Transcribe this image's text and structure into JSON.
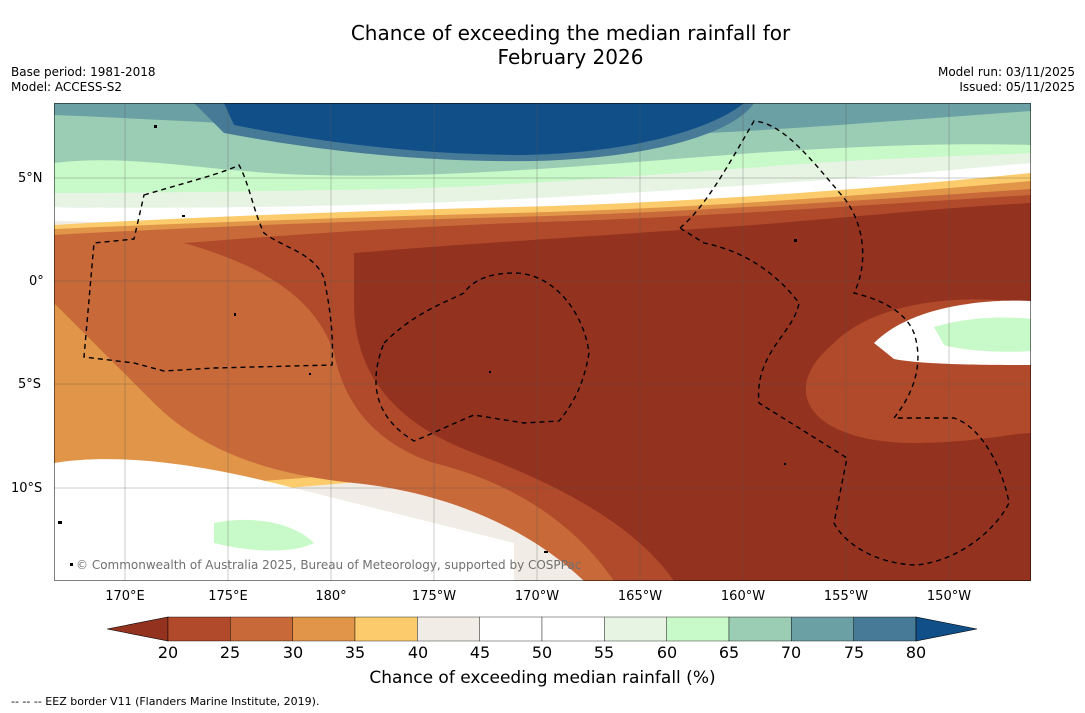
{
  "title_line1": "Chance of exceeding the median rainfall for",
  "title_line2": "February 2026",
  "base_period": "Base period: 1981-2018",
  "model": "Model: ACCESS-S2",
  "model_run": "Model run: 03/11/2025",
  "issued": "Issued: 05/11/2025",
  "lat_labels": [
    "5°N",
    "0°",
    "5°S",
    "10°S"
  ],
  "lon_labels": [
    "170°E",
    "175°E",
    "180°",
    "175°W",
    "170°W",
    "165°W",
    "160°W",
    "155°W",
    "150°W"
  ],
  "copyright": "© Commonwealth of Australia 2025, Bureau of Meteorology, supported by COSPPac",
  "colorbar": {
    "ticks": [
      "20",
      "25",
      "30",
      "35",
      "40",
      "45",
      "50",
      "55",
      "60",
      "65",
      "70",
      "75",
      "80"
    ],
    "colors": [
      "#943220",
      "#b04a2a",
      "#c8693a",
      "#e09548",
      "#fccb6c",
      "#f1ece6",
      "#ffffff",
      "#ffffff",
      "#e7f4e4",
      "#c8f9c8",
      "#9acdb4",
      "#6ba0a4",
      "#467a96",
      "#114f89"
    ],
    "label": "Chance of exceeding median rainfall (%)"
  },
  "footnote": "-- -- -- EEZ border V11 (Flanders Marine Institute, 2019)."
}
